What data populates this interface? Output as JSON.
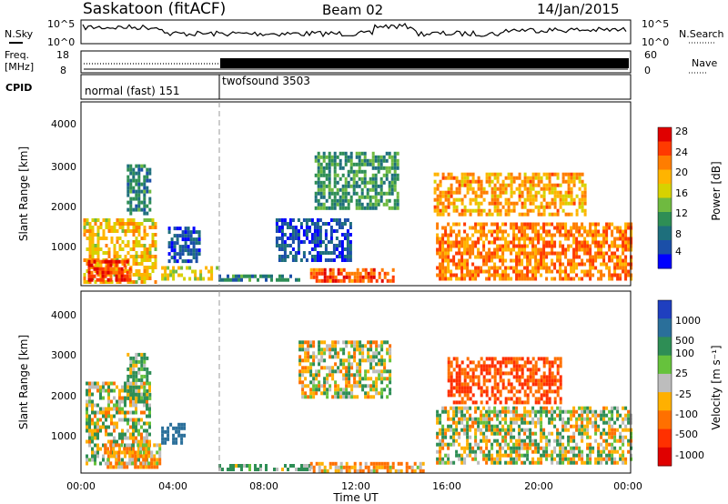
{
  "header": {
    "station": "Saskatoon (fitACF)",
    "beam": "Beam 02",
    "date": "14/Jan/2015"
  },
  "top_panels": {
    "nsky_label": "N.Sky",
    "nsky_ticks": [
      "10^5",
      "10^0"
    ],
    "nsearch_label": "N.Search",
    "nsearch_ticks": [
      "10^5",
      "10^0"
    ],
    "freq_label_1": "Freq.",
    "freq_label_2": "[MHz]",
    "freq_ticks": [
      "18",
      "8"
    ],
    "nave_label": "Nave",
    "nave_ticks": [
      "60",
      "0"
    ],
    "cpid_label": "CPID",
    "cpid_modes": [
      {
        "name": "normal (fast) 151",
        "start_hour": 0,
        "end_hour": 6
      },
      {
        "name": "twofsound 3503",
        "start_hour": 6,
        "end_hour": 24
      }
    ]
  },
  "axes": {
    "y_label": "Slant Range [km]",
    "y_ticks": [
      "1000",
      "2000",
      "3000",
      "4000"
    ],
    "x_ticks": [
      "00:00",
      "04:00",
      "08:00",
      "12:00",
      "16:00",
      "20:00",
      "00:00"
    ],
    "x_label": "Time UT"
  },
  "power_scale": {
    "label": "Power [dB]",
    "ticks": [
      "28",
      "24",
      "20",
      "16",
      "12",
      "8",
      "4"
    ],
    "colors": [
      "#e00000",
      "#ff3a00",
      "#ff7d00",
      "#ffb400",
      "#d7d200",
      "#6fba40",
      "#2e8e55",
      "#1e6f7c",
      "#1b4fa8",
      "#0000ff"
    ]
  },
  "velocity_scale": {
    "label": "Velocity [m s⁻¹]",
    "ticks": [
      "1000",
      "500",
      "100",
      "25",
      "-25",
      "-100",
      "-500",
      "-1000"
    ],
    "colors": [
      "#1f3fbf",
      "#2a6f9a",
      "#2e8e55",
      "#66c23c",
      "#bdbdbd",
      "#ffb000",
      "#ff7000",
      "#ff3000",
      "#e00000"
    ]
  },
  "chart_data": [
    {
      "type": "heatmap",
      "title": "Power",
      "xlabel": "",
      "ylabel": "Slant Range [km]",
      "xlim": [
        0,
        24
      ],
      "ylim": [
        180,
        4600
      ],
      "colorbar_label": "Power [dB]",
      "regions": [
        {
          "t0": 0.1,
          "t1": 3.2,
          "r0": 300,
          "r1": 1800,
          "v": 20
        },
        {
          "t0": 0.3,
          "t1": 2.2,
          "r0": 350,
          "r1": 800,
          "v": 28
        },
        {
          "t0": 2.0,
          "t1": 3.0,
          "r0": 1900,
          "r1": 3100,
          "v": 10
        },
        {
          "t0": 3.5,
          "t1": 6.0,
          "r0": 300,
          "r1": 650,
          "v": 18
        },
        {
          "t0": 3.8,
          "t1": 5.2,
          "r0": 800,
          "r1": 1600,
          "v": 6
        },
        {
          "t0": 6.0,
          "t1": 9.5,
          "r0": 300,
          "r1": 450,
          "v": 10
        },
        {
          "t0": 8.5,
          "t1": 11.8,
          "r0": 800,
          "r1": 1800,
          "v": 6
        },
        {
          "t0": 10.0,
          "t1": 13.6,
          "r0": 300,
          "r1": 600,
          "v": 26
        },
        {
          "t0": 10.2,
          "t1": 13.8,
          "r0": 2000,
          "r1": 3400,
          "v": 12
        },
        {
          "t0": 15.5,
          "t1": 24.0,
          "r0": 350,
          "r1": 1700,
          "v": 24
        },
        {
          "t0": 15.4,
          "t1": 22.0,
          "r0": 1900,
          "r1": 2900,
          "v": 22
        }
      ]
    },
    {
      "type": "heatmap",
      "title": "Velocity",
      "xlabel": "Time UT",
      "ylabel": "Slant Range [km]",
      "xlim": [
        0,
        24
      ],
      "ylim": [
        180,
        4600
      ],
      "colorbar_label": "Velocity [m s⁻¹]",
      "regions": [
        {
          "t0": 0.2,
          "t1": 3.0,
          "r0": 400,
          "r1": 2400,
          "v": 0
        },
        {
          "t0": 1.0,
          "t1": 3.5,
          "r0": 300,
          "r1": 900,
          "v": -100
        },
        {
          "t0": 2.0,
          "t1": 3.0,
          "r0": 2000,
          "r1": 3100,
          "v": 100
        },
        {
          "t0": 3.5,
          "t1": 4.5,
          "r0": 900,
          "r1": 1400,
          "v": 500
        },
        {
          "t0": 6.0,
          "t1": 10.0,
          "r0": 250,
          "r1": 400,
          "v": 100
        },
        {
          "t0": 9.5,
          "t1": 13.5,
          "r0": 2000,
          "r1": 3400,
          "v": 0
        },
        {
          "t0": 10.0,
          "t1": 15.0,
          "r0": 250,
          "r1": 450,
          "v": -100
        },
        {
          "t0": 15.5,
          "t1": 24.0,
          "r0": 400,
          "r1": 1800,
          "v": 0
        },
        {
          "t0": 16.0,
          "t1": 21.0,
          "r0": 1900,
          "r1": 3000,
          "v": -500
        }
      ]
    }
  ]
}
